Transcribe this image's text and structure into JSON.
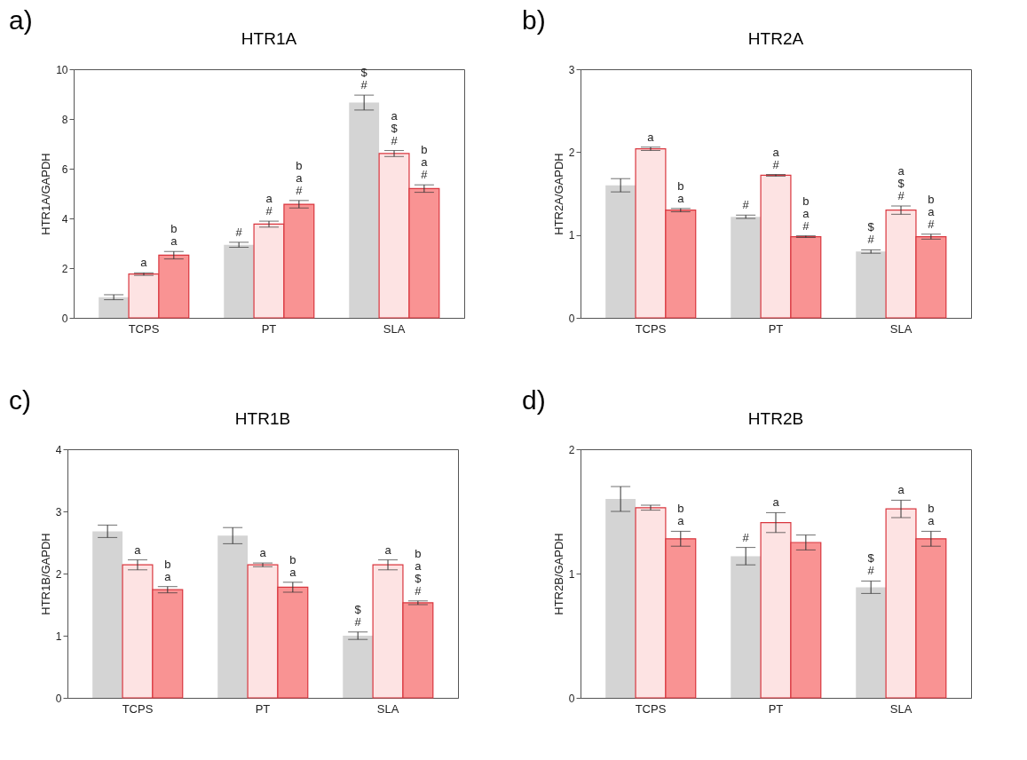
{
  "chart_data": [
    {
      "type": "bar",
      "title": "HTR1A",
      "ylabel": "HTR1A/GAPDH",
      "annotations": [
        "a)"
      ],
      "categories": [
        "TCPS",
        "PT",
        "SLA"
      ],
      "ylim": [
        0,
        10
      ],
      "yticks": [
        0,
        2,
        4,
        6,
        8,
        10
      ],
      "series": [
        {
          "color": "#d4d4d4",
          "values": [
            0.83,
            2.94,
            8.66
          ],
          "errors": [
            0.1,
            0.1,
            0.3
          ],
          "value_labels": [
            null,
            "#",
            "$\n#"
          ]
        },
        {
          "color": "#fde3e3",
          "values": [
            1.76,
            3.77,
            6.61
          ],
          "errors": [
            0.05,
            0.12,
            0.12
          ],
          "value_labels": [
            "a",
            "a\n#",
            "a\n$\n#"
          ]
        },
        {
          "color": "#f99393",
          "values": [
            2.52,
            4.57,
            5.2
          ],
          "errors": [
            0.15,
            0.15,
            0.15
          ],
          "value_labels": [
            "b\na",
            "b\na\n#",
            "b\na\n#"
          ]
        }
      ]
    },
    {
      "type": "bar",
      "title": "HTR2A",
      "ylabel": "HTR2A/GAPDH",
      "annotations": [
        "b)"
      ],
      "categories": [
        "TCPS",
        "PT",
        "SLA"
      ],
      "ylim": [
        0,
        3
      ],
      "yticks": [
        0,
        1,
        2,
        3
      ],
      "series": [
        {
          "color": "#d4d4d4",
          "values": [
            1.6,
            1.22,
            0.8
          ],
          "errors": [
            0.08,
            0.02,
            0.02
          ],
          "value_labels": [
            null,
            "#",
            "$\n#"
          ]
        },
        {
          "color": "#fde3e3",
          "values": [
            2.04,
            1.72,
            1.3
          ],
          "errors": [
            0.02,
            0.01,
            0.05
          ],
          "value_labels": [
            "a",
            "a\n#",
            "a\n$\n#"
          ]
        },
        {
          "color": "#f99393",
          "values": [
            1.3,
            0.98,
            0.98
          ],
          "errors": [
            0.02,
            0.01,
            0.03
          ],
          "value_labels": [
            "b\na",
            "b\na\n#",
            "b\na\n#"
          ]
        }
      ]
    },
    {
      "type": "bar",
      "title": "HTR1B",
      "ylabel": "HTR1B/GAPDH",
      "annotations": [
        "c)"
      ],
      "categories": [
        "TCPS",
        "PT",
        "SLA"
      ],
      "ylim": [
        0,
        4
      ],
      "yticks": [
        0,
        1,
        2,
        3,
        4
      ],
      "series": [
        {
          "color": "#d4d4d4",
          "values": [
            2.68,
            2.61,
            1.0
          ],
          "errors": [
            0.1,
            0.13,
            0.06
          ],
          "value_labels": [
            null,
            null,
            "$\n#"
          ]
        },
        {
          "color": "#fde3e3",
          "values": [
            2.14,
            2.14,
            2.14
          ],
          "errors": [
            0.08,
            0.03,
            0.08
          ],
          "value_labels": [
            "a",
            "a",
            "a"
          ]
        },
        {
          "color": "#f99393",
          "values": [
            1.74,
            1.78,
            1.53
          ],
          "errors": [
            0.05,
            0.08,
            0.03
          ],
          "value_labels": [
            "b\na",
            "b\na",
            "b\na\n$\n#"
          ]
        }
      ]
    },
    {
      "type": "bar",
      "title": "HTR2B",
      "ylabel": "HTR2B/GAPDH",
      "annotations": [
        "d)"
      ],
      "categories": [
        "TCPS",
        "PT",
        "SLA"
      ],
      "ylim": [
        0,
        2
      ],
      "yticks": [
        0,
        1,
        2
      ],
      "series": [
        {
          "color": "#d4d4d4",
          "values": [
            1.6,
            1.14,
            0.89
          ],
          "errors": [
            0.1,
            0.07,
            0.05
          ],
          "value_labels": [
            null,
            "#",
            "$\n#"
          ]
        },
        {
          "color": "#fde3e3",
          "values": [
            1.53,
            1.41,
            1.52
          ],
          "errors": [
            0.02,
            0.08,
            0.07
          ],
          "value_labels": [
            null,
            "a",
            "a"
          ]
        },
        {
          "color": "#f99393",
          "values": [
            1.28,
            1.25,
            1.28
          ],
          "errors": [
            0.06,
            0.06,
            0.06
          ],
          "value_labels": [
            "b\na",
            null,
            "b\na"
          ]
        }
      ]
    }
  ]
}
